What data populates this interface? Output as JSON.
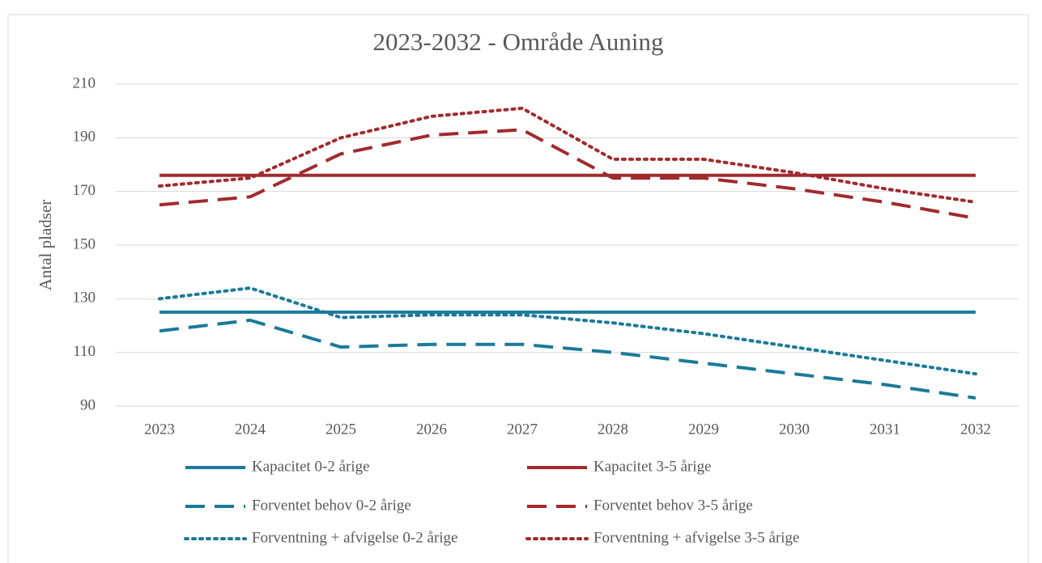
{
  "chart_data": {
    "type": "line",
    "title": "2023-2032 - Område Auning",
    "y_label": "Antal pladser",
    "categories": [
      "2023",
      "2024",
      "2025",
      "2026",
      "2027",
      "2028",
      "2029",
      "2030",
      "2031",
      "2032"
    ],
    "ylim": [
      90,
      210
    ],
    "yticks": [
      90,
      110,
      130,
      150,
      170,
      190,
      210
    ],
    "grid": true,
    "series": [
      {
        "name": "Kapacitet 0-2 årige",
        "color": "#1b7a9a",
        "style": "solid",
        "values": [
          125,
          125,
          125,
          125,
          125,
          125,
          125,
          125,
          125,
          125
        ]
      },
      {
        "name": "Kapacitet 3-5 årige",
        "color": "#a02b2e",
        "style": "solid",
        "values": [
          176,
          176,
          176,
          176,
          176,
          176,
          176,
          176,
          176,
          176
        ]
      },
      {
        "name": "Forventet behov 0-2 årige",
        "color": "#1b7a9a",
        "style": "dashed",
        "values": [
          118,
          122,
          112,
          113,
          113,
          110,
          106,
          102,
          98,
          93
        ]
      },
      {
        "name": "Forventet behov 3-5 årige",
        "color": "#a02b2e",
        "style": "dashed",
        "values": [
          165,
          168,
          184,
          191,
          193,
          175,
          175,
          171,
          166,
          160
        ]
      },
      {
        "name": "Forventning + afvigelse 0-2 årige",
        "color": "#1b7a9a",
        "style": "dotted",
        "values": [
          130,
          134,
          123,
          124,
          124,
          121,
          117,
          112,
          107,
          102
        ]
      },
      {
        "name": "Forventning + afvigelse 3-5 årige",
        "color": "#a02b2e",
        "style": "dotted",
        "values": [
          172,
          175,
          190,
          198,
          201,
          182,
          182,
          177,
          171,
          166
        ]
      }
    ]
  }
}
